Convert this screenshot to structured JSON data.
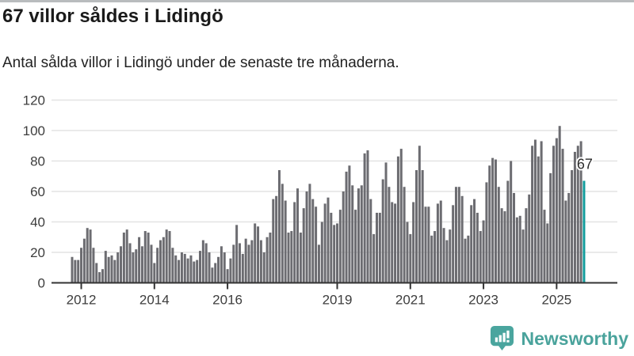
{
  "page": {
    "title": "67 villor såldes i Lidingö",
    "subtitle": "Antal sålda villor i Lidingö under de senaste tre månaderna."
  },
  "footer": {
    "brand": "Newsworthy",
    "brand_color": "#4aa39c",
    "logo_icon": "speech-bubble-with-bar-chart-and-exclamation"
  },
  "chart_data": {
    "type": "bar",
    "title": "67 villor såldes i Lidingö",
    "subtitle": "Antal sålda villor i Lidingö under de senaste tre månaderna.",
    "granularity": "monthly rolling 3-month sales count",
    "x_range_years": "2011–2025",
    "values": [
      17,
      15,
      15,
      23,
      29,
      36,
      35,
      23,
      13,
      7,
      9,
      21,
      17,
      18,
      15,
      20,
      24,
      33,
      35,
      26,
      20,
      22,
      30,
      24,
      34,
      33,
      25,
      13,
      23,
      28,
      30,
      35,
      34,
      23,
      18,
      15,
      20,
      19,
      16,
      18,
      14,
      15,
      21,
      28,
      26,
      20,
      10,
      13,
      17,
      24,
      20,
      9,
      16,
      25,
      38,
      26,
      19,
      29,
      25,
      28,
      39,
      37,
      28,
      20,
      30,
      33,
      55,
      57,
      74,
      65,
      54,
      33,
      34,
      53,
      62,
      33,
      49,
      60,
      65,
      55,
      50,
      25,
      40,
      52,
      56,
      46,
      38,
      39,
      48,
      60,
      73,
      77,
      64,
      48,
      62,
      64,
      85,
      87,
      55,
      32,
      46,
      46,
      68,
      79,
      63,
      53,
      52,
      83,
      88,
      63,
      40,
      32,
      53,
      74,
      90,
      74,
      50,
      50,
      31,
      34,
      52,
      54,
      36,
      28,
      35,
      51,
      63,
      63,
      57,
      29,
      31,
      51,
      55,
      46,
      34,
      41,
      66,
      77,
      82,
      81,
      63,
      49,
      47,
      67,
      80,
      59,
      43,
      44,
      35,
      49,
      58,
      90,
      94,
      83,
      93,
      48,
      39,
      72,
      90,
      95,
      103,
      88,
      54,
      59,
      74,
      86,
      90,
      93,
      67
    ],
    "highlight_index": 168,
    "highlight_value": 67,
    "annotation_label": "67",
    "y_ticks": [
      0,
      20,
      40,
      60,
      80,
      100,
      120
    ],
    "ylim": [
      0,
      120
    ],
    "x_tick_labels": [
      "2012",
      "2014",
      "2016",
      "2019",
      "2021",
      "2023",
      "2025"
    ],
    "x_tick_month_indices": [
      3,
      27,
      51,
      87,
      111,
      135,
      159
    ],
    "legend": "none",
    "grid": "horizontal",
    "bar_color": "#6c6c71",
    "highlight_color": "#129c9c",
    "axis_color": "#333333",
    "gridline_color": "#e3e3e3",
    "tick_label_color": "#3d3d3d"
  }
}
